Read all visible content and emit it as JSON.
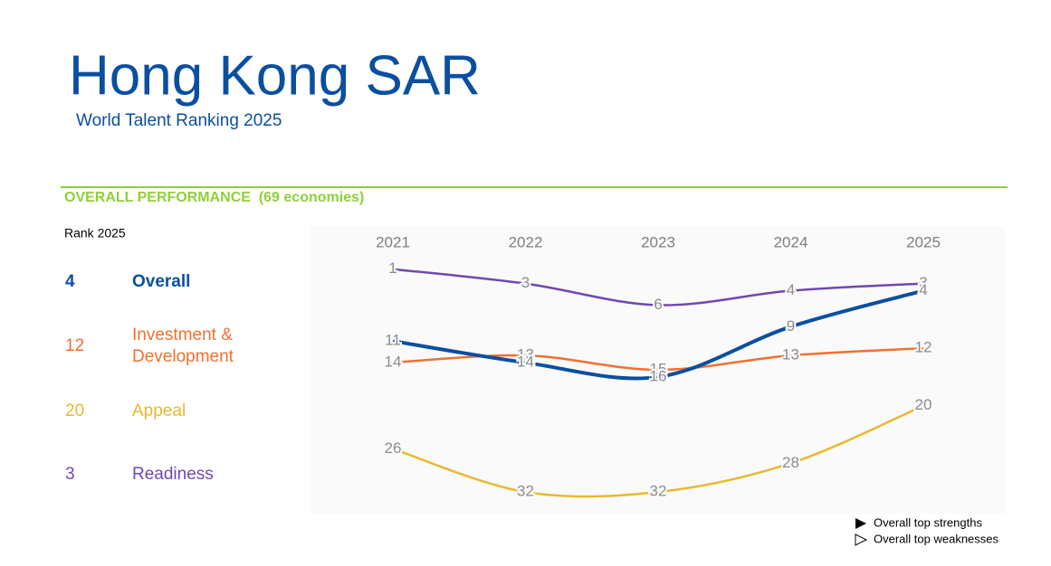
{
  "chart_data": {
    "type": "line",
    "title": "Hong Kong SAR",
    "subtitle": "World Talent Ranking 2025",
    "section": "OVERALL PERFORMANCE  (69 economies)",
    "rank_heading": "Rank 2025",
    "categories": [
      "2021",
      "2022",
      "2023",
      "2024",
      "2025"
    ],
    "series": [
      {
        "name": "Overall",
        "color": "#0b4f9f",
        "values": [
          11,
          14,
          16,
          9,
          4
        ]
      },
      {
        "name": "Investment & Development",
        "color": "#f0702f",
        "values": [
          14,
          13,
          15,
          13,
          12
        ]
      },
      {
        "name": "Appeal",
        "color": "#e8b930",
        "values": [
          26,
          32,
          32,
          28,
          20
        ]
      },
      {
        "name": "Readiness",
        "color": "#7048b0",
        "values": [
          1,
          3,
          6,
          4,
          3
        ]
      }
    ],
    "ylim": [
      -5,
      35
    ],
    "inverted": true,
    "legend": [
      "Overall top strengths",
      "Overall top weaknesses"
    ]
  }
}
